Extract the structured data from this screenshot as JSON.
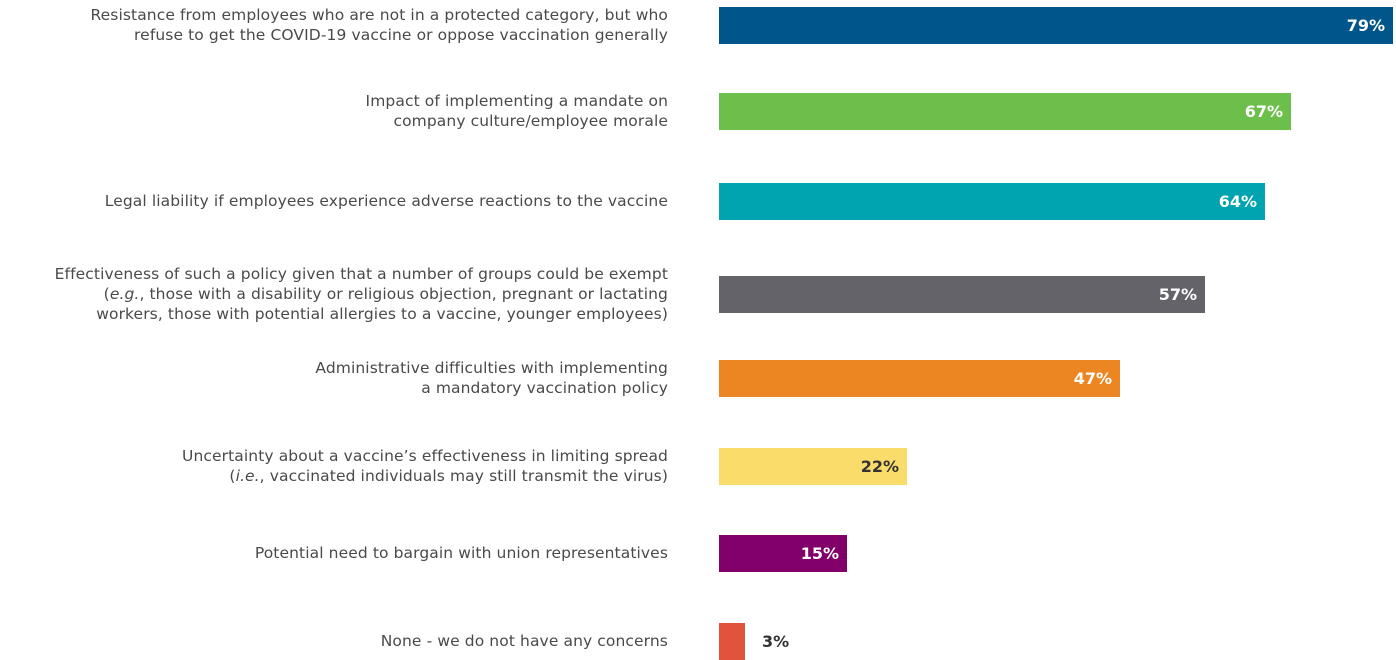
{
  "chart_data": {
    "type": "bar",
    "orientation": "horizontal",
    "title": "",
    "xlabel": "",
    "ylabel": "",
    "xlim": [
      0,
      79
    ],
    "unit": "%",
    "categories": [
      [
        "Resistance from employees who are not in a protected category, but who",
        "refuse to get the COVID-19 vaccine or oppose vaccination generally"
      ],
      [
        "Impact of implementing a mandate on",
        "company culture/employee morale"
      ],
      [
        "Legal liability if employees experience adverse reactions to the vaccine"
      ],
      [
        "Effectiveness of such a policy given that a number of groups could be exempt",
        "(e.g., those with a disability or religious objection, pregnant or lactating",
        "workers, those with potential allergies to a vaccine, younger employees)"
      ],
      [
        "Administrative difficulties with implementing",
        "a mandatory vaccination policy"
      ],
      [
        "Uncertainty about a vaccine’s effectiveness in limiting spread",
        "(i.e., vaccinated individuals may still transmit the virus)"
      ],
      [
        "Potential need to bargain with union representatives"
      ],
      [
        "None - we do not have any concerns"
      ]
    ],
    "values": [
      79,
      67,
      64,
      57,
      47,
      22,
      15,
      3
    ],
    "value_labels": [
      "79%",
      "67%",
      "64%",
      "57%",
      "47%",
      "22%",
      "15%",
      "3%"
    ],
    "colors": [
      "#00568a",
      "#6dbf4b",
      "#00a3b0",
      "#636369",
      "#ec8623",
      "#fadc6b",
      "#820069",
      "#e2533d"
    ],
    "label_colors": [
      "#ffffff",
      "#ffffff",
      "#ffffff",
      "#ffffff",
      "#ffffff",
      "#333333",
      "#ffffff",
      "#333333"
    ],
    "grid": false,
    "legend": "none"
  }
}
